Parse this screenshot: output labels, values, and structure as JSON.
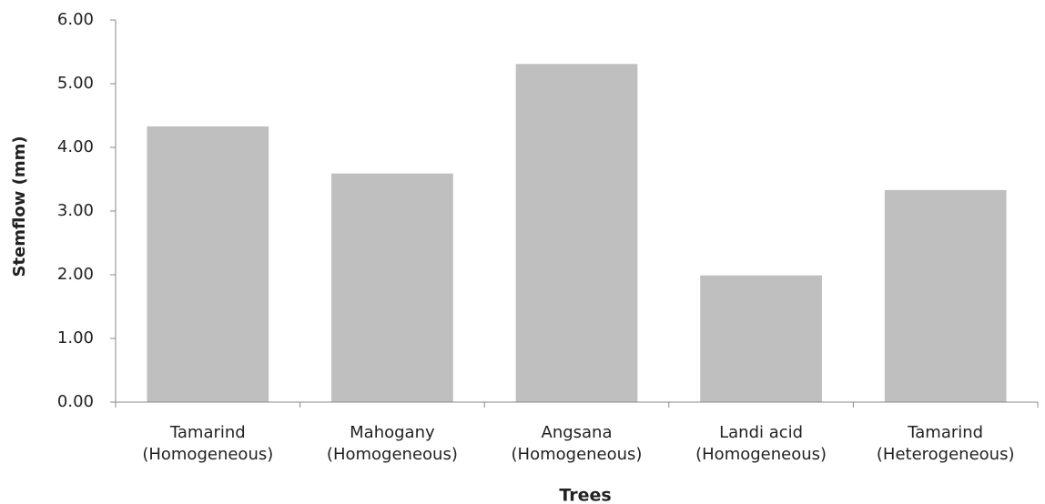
{
  "chart_data": {
    "type": "bar",
    "categories": [
      "Tamarind (Homogeneous)",
      "Mahogany (Homogeneous)",
      "Angsana (Homogeneous)",
      "Landi acid (Homogeneous)",
      "Tamarind (Heterogeneous)"
    ],
    "values": [
      4.33,
      3.59,
      5.31,
      1.99,
      3.33
    ],
    "color": "#bfbfbf",
    "x_label": "Trees",
    "y_label": "Stemflow (mm)",
    "ylim": [
      0,
      6
    ],
    "yticks": [
      {
        "value": 0,
        "label": "0.00"
      },
      {
        "value": 1,
        "label": "1.00"
      },
      {
        "value": 2,
        "label": "2.00"
      },
      {
        "value": 3,
        "label": "3.00"
      },
      {
        "value": 4,
        "label": "4.00"
      },
      {
        "value": 5,
        "label": "5.00"
      },
      {
        "value": 6,
        "label": "6.00"
      }
    ],
    "grid": false
  }
}
